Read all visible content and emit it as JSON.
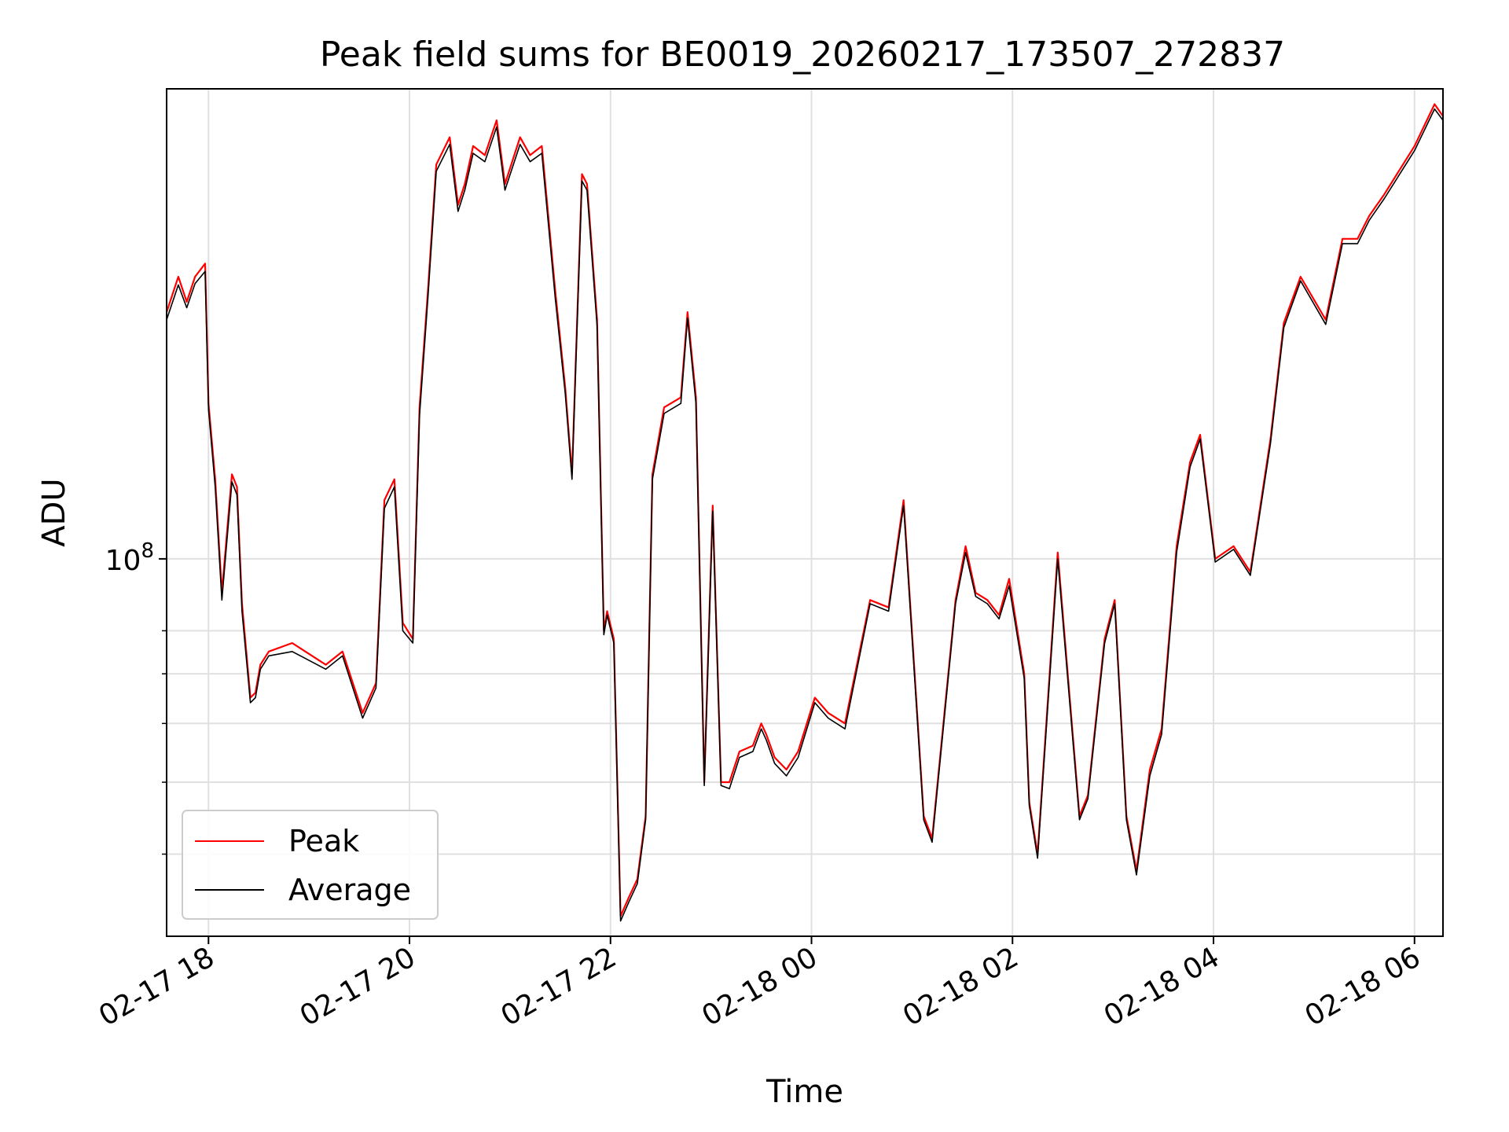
{
  "chart_data": {
    "type": "line",
    "title": "Peak field sums for BE0019_20260217_173507_272837",
    "xlabel": "Time",
    "ylabel": "ADU",
    "yscale": "log",
    "grid": true,
    "legend_position": "lower-left",
    "xlim": [
      "02-17 17:35",
      "02-18 06:17"
    ],
    "ylim": [
      31000000,
      430000000
    ],
    "x_ticks": [
      "02-17 18",
      "02-17 20",
      "02-17 22",
      "02-18 00",
      "02-18 02",
      "02-18 04",
      "02-18 06"
    ],
    "y_tick_labels": [
      {
        "value": 100000000,
        "base": "10",
        "exp": "8"
      }
    ],
    "y_minor_ticks": [
      40000000,
      50000000,
      60000000,
      70000000,
      80000000
    ],
    "series": [
      {
        "name": "Peak",
        "color": "#ff0000",
        "x": [
          "02-17 17:35",
          "02-17 17:42",
          "02-17 17:47",
          "02-17 17:52",
          "02-17 17:58",
          "02-17 18:00",
          "02-17 18:04",
          "02-17 18:08",
          "02-17 18:14",
          "02-17 18:17",
          "02-17 18:20",
          "02-17 18:25",
          "02-17 18:28",
          "02-17 18:31",
          "02-17 18:36",
          "02-17 18:50",
          "02-17 19:10",
          "02-17 19:20",
          "02-17 19:32",
          "02-17 19:40",
          "02-17 19:45",
          "02-17 19:51",
          "02-17 19:56",
          "02-17 20:02",
          "02-17 20:06",
          "02-17 20:11",
          "02-17 20:16",
          "02-17 20:24",
          "02-17 20:29",
          "02-17 20:33",
          "02-17 20:38",
          "02-17 20:45",
          "02-17 20:52",
          "02-17 20:57",
          "02-17 21:06",
          "02-17 21:12",
          "02-17 21:19",
          "02-17 21:27",
          "02-17 21:33",
          "02-17 21:37",
          "02-17 21:43",
          "02-17 21:46",
          "02-17 21:52",
          "02-17 21:56",
          "02-17 21:58",
          "02-17 22:02",
          "02-17 22:06",
          "02-17 22:11",
          "02-17 22:16",
          "02-17 22:21",
          "02-17 22:25",
          "02-17 22:32",
          "02-17 22:42",
          "02-17 22:46",
          "02-17 22:51",
          "02-17 22:56",
          "02-17 23:01",
          "02-17 23:06",
          "02-17 23:11",
          "02-17 23:17",
          "02-17 23:25",
          "02-17 23:30",
          "02-17 23:33",
          "02-17 23:38",
          "02-17 23:45",
          "02-17 23:52",
          "02-18 00:02",
          "02-18 00:10",
          "02-18 00:20",
          "02-18 00:35",
          "02-18 00:46",
          "02-18 00:55",
          "02-18 01:07",
          "02-18 01:12",
          "02-18 01:26",
          "02-18 01:32",
          "02-18 01:38",
          "02-18 01:45",
          "02-18 01:52",
          "02-18 01:58",
          "02-18 02:07",
          "02-18 02:10",
          "02-18 02:15",
          "02-18 02:27",
          "02-18 02:40",
          "02-18 02:45",
          "02-18 02:55",
          "02-18 03:01",
          "02-18 03:08",
          "02-18 03:14",
          "02-18 03:22",
          "02-18 03:29",
          "02-18 03:38",
          "02-18 03:46",
          "02-18 03:52",
          "02-18 04:01",
          "02-18 04:12",
          "02-18 04:22",
          "02-18 04:34",
          "02-18 04:42",
          "02-18 04:52",
          "02-18 05:07",
          "02-18 05:17",
          "02-18 05:26",
          "02-18 05:33",
          "02-18 05:42",
          "02-18 06:00",
          "02-18 06:12",
          "02-18 06:17"
        ],
        "values": [
          215000000,
          240000000,
          222000000,
          240000000,
          250000000,
          162000000,
          128000000,
          90000000,
          130000000,
          125000000,
          87000000,
          65000000,
          66000000,
          72000000,
          75000000,
          77000000,
          72000000,
          75000000,
          62000000,
          68000000,
          120000000,
          128000000,
          82000000,
          78000000,
          160000000,
          230000000,
          340000000,
          370000000,
          300000000,
          320000000,
          360000000,
          350000000,
          390000000,
          320000000,
          370000000,
          350000000,
          360000000,
          230000000,
          170000000,
          130000000,
          330000000,
          320000000,
          210000000,
          80000000,
          85000000,
          78000000,
          33000000,
          35000000,
          37000000,
          45000000,
          130000000,
          160000000,
          165000000,
          215000000,
          165000000,
          50000000,
          118000000,
          50000000,
          50000000,
          55000000,
          56000000,
          60000000,
          58000000,
          54000000,
          52000000,
          55000000,
          65000000,
          62000000,
          60000000,
          88000000,
          86000000,
          120000000,
          45000000,
          42000000,
          88000000,
          104000000,
          90000000,
          88000000,
          84000000,
          94000000,
          70000000,
          47000000,
          40000000,
          102000000,
          45000000,
          48000000,
          78000000,
          88000000,
          45000000,
          38000000,
          52000000,
          59000000,
          104000000,
          135000000,
          147000000,
          100000000,
          104000000,
          96000000,
          145000000,
          208000000,
          240000000,
          210000000,
          270000000,
          270000000,
          290000000,
          310000000,
          360000000,
          410000000,
          395000000
        ]
      },
      {
        "name": "Average",
        "color": "#000000",
        "x": [
          "02-17 17:35",
          "02-17 17:42",
          "02-17 17:47",
          "02-17 17:52",
          "02-17 17:58",
          "02-17 18:00",
          "02-17 18:04",
          "02-17 18:08",
          "02-17 18:14",
          "02-17 18:17",
          "02-17 18:20",
          "02-17 18:25",
          "02-17 18:28",
          "02-17 18:31",
          "02-17 18:36",
          "02-17 18:50",
          "02-17 19:10",
          "02-17 19:20",
          "02-17 19:32",
          "02-17 19:40",
          "02-17 19:45",
          "02-17 19:51",
          "02-17 19:56",
          "02-17 20:02",
          "02-17 20:06",
          "02-17 20:11",
          "02-17 20:16",
          "02-17 20:24",
          "02-17 20:29",
          "02-17 20:33",
          "02-17 20:38",
          "02-17 20:45",
          "02-17 20:52",
          "02-17 20:57",
          "02-17 21:06",
          "02-17 21:12",
          "02-17 21:19",
          "02-17 21:27",
          "02-17 21:33",
          "02-17 21:37",
          "02-17 21:43",
          "02-17 21:46",
          "02-17 21:52",
          "02-17 21:56",
          "02-17 21:58",
          "02-17 22:02",
          "02-17 22:06",
          "02-17 22:11",
          "02-17 22:16",
          "02-17 22:21",
          "02-17 22:25",
          "02-17 22:32",
          "02-17 22:42",
          "02-17 22:46",
          "02-17 22:51",
          "02-17 22:56",
          "02-17 23:01",
          "02-17 23:06",
          "02-17 23:11",
          "02-17 23:17",
          "02-17 23:25",
          "02-17 23:30",
          "02-17 23:33",
          "02-17 23:38",
          "02-17 23:45",
          "02-17 23:52",
          "02-18 00:02",
          "02-18 00:10",
          "02-18 00:20",
          "02-18 00:35",
          "02-18 00:46",
          "02-18 00:55",
          "02-18 01:07",
          "02-18 01:12",
          "02-18 01:26",
          "02-18 01:32",
          "02-18 01:38",
          "02-18 01:45",
          "02-18 01:52",
          "02-18 01:58",
          "02-18 02:07",
          "02-18 02:10",
          "02-18 02:15",
          "02-18 02:27",
          "02-18 02:40",
          "02-18 02:45",
          "02-18 02:55",
          "02-18 03:01",
          "02-18 03:08",
          "02-18 03:14",
          "02-18 03:22",
          "02-18 03:29",
          "02-18 03:38",
          "02-18 03:46",
          "02-18 03:52",
          "02-18 04:01",
          "02-18 04:12",
          "02-18 04:22",
          "02-18 04:34",
          "02-18 04:42",
          "02-18 04:52",
          "02-18 05:07",
          "02-18 05:17",
          "02-18 05:26",
          "02-18 05:33",
          "02-18 05:42",
          "02-18 06:00",
          "02-18 06:12",
          "02-18 06:17"
        ],
        "values": [
          210000000,
          234000000,
          218000000,
          235000000,
          244000000,
          159000000,
          125000000,
          88000000,
          127000000,
          122000000,
          85000000,
          64000000,
          65000000,
          71000000,
          74000000,
          75000000,
          71000000,
          74000000,
          61000000,
          67000000,
          117000000,
          125000000,
          80000000,
          77000000,
          156000000,
          225000000,
          333000000,
          362000000,
          294000000,
          314000000,
          352000000,
          343000000,
          382000000,
          314000000,
          362000000,
          343000000,
          352000000,
          225000000,
          167000000,
          128000000,
          323000000,
          314000000,
          206000000,
          79000000,
          84000000,
          77000000,
          32500000,
          34500000,
          36500000,
          44500000,
          128000000,
          157000000,
          162000000,
          211000000,
          162000000,
          49500000,
          116000000,
          49500000,
          49000000,
          54000000,
          55000000,
          59000000,
          57000000,
          53000000,
          51000000,
          54000000,
          64000000,
          61000000,
          59000000,
          87000000,
          85000000,
          118000000,
          44500000,
          41500000,
          87000000,
          102000000,
          89000000,
          87000000,
          83000000,
          92000000,
          69000000,
          46500000,
          39500000,
          100000000,
          44500000,
          47500000,
          77000000,
          87000000,
          44500000,
          37500000,
          51000000,
          58000000,
          102000000,
          133000000,
          145000000,
          99000000,
          103000000,
          95000000,
          143000000,
          205000000,
          237000000,
          207000000,
          266000000,
          266000000,
          286000000,
          306000000,
          355000000,
          404000000,
          390000000
        ]
      }
    ]
  }
}
